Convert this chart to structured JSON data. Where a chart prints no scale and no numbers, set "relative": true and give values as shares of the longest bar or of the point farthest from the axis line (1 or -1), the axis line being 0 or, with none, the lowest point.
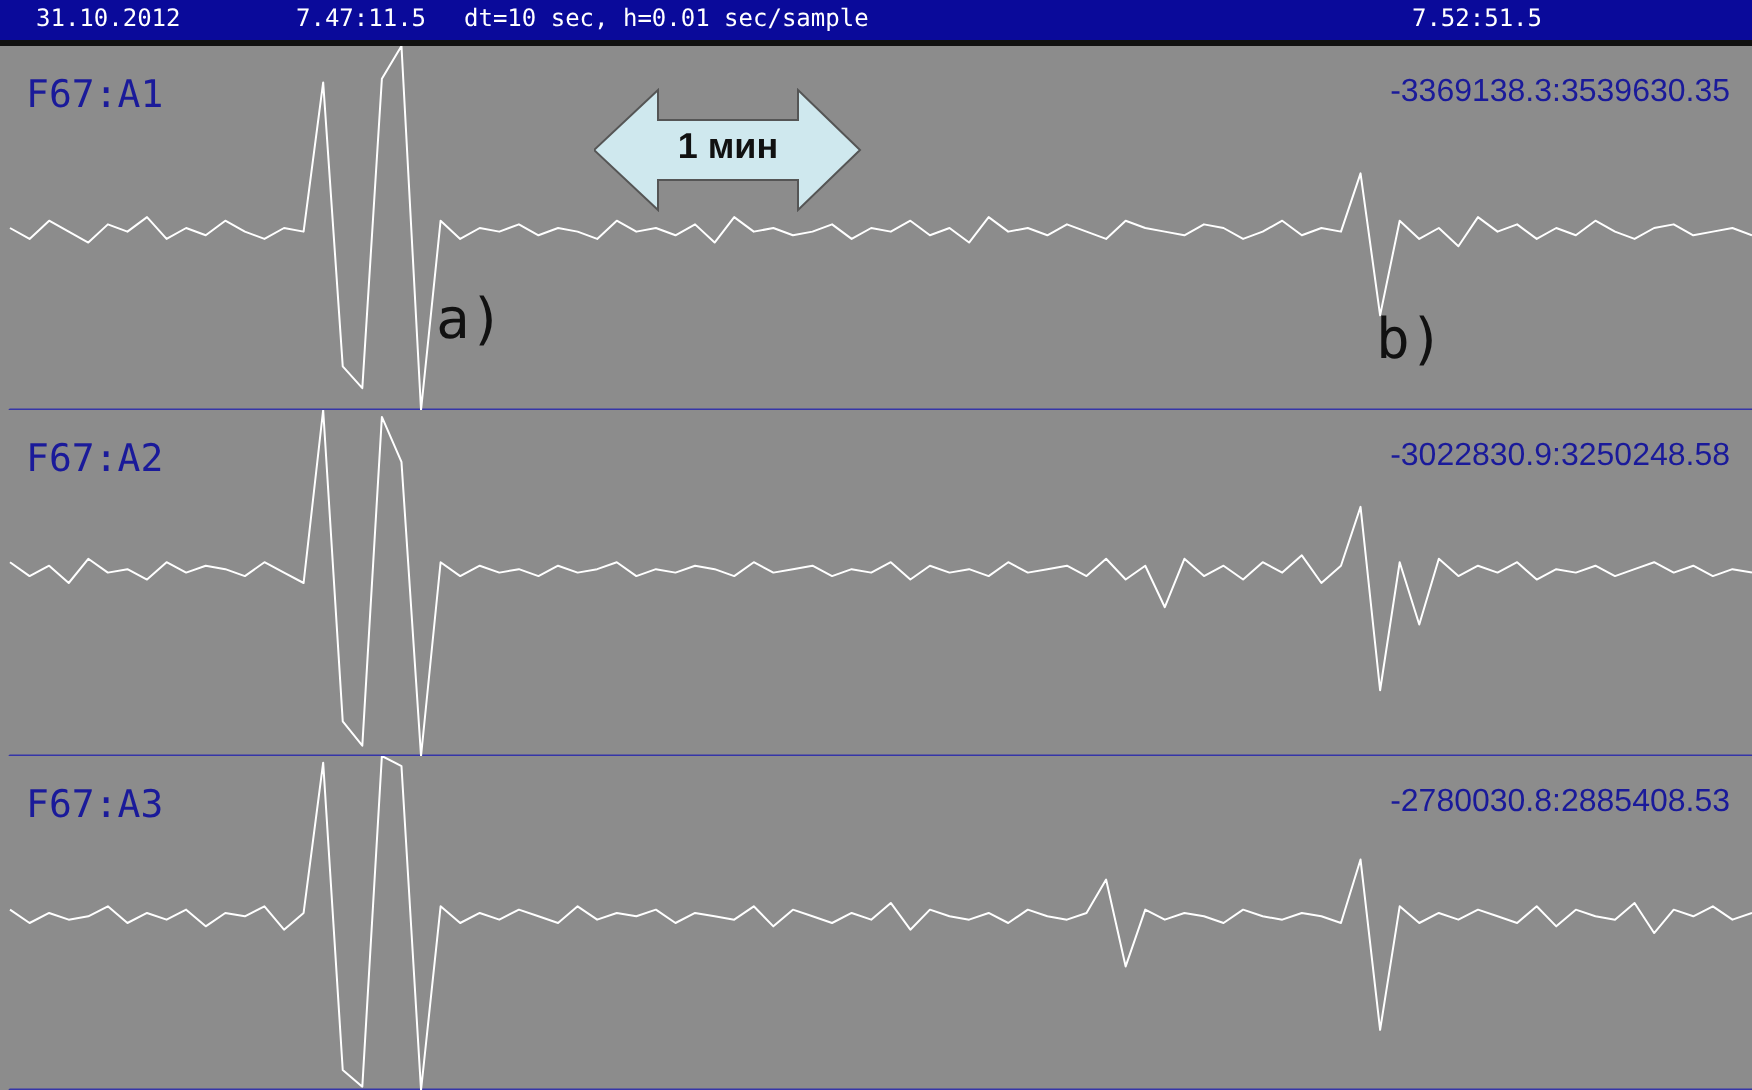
{
  "chart_data": [
    {
      "type": "line",
      "title": "F67:A1",
      "subtitle": "-3369138.3:3539630.35",
      "relative": true,
      "tick_labels": false,
      "annotations": [
        "31.10.2012",
        "7.47:11.5",
        "dt=10 sec, h=0.01 sec/sample",
        "7.52:51.5",
        "1 мин",
        "a)",
        "b)"
      ],
      "categories": [
        null,
        null,
        null,
        null,
        null,
        null,
        null,
        null,
        null,
        null,
        null,
        null,
        null,
        null,
        null,
        null,
        null,
        null,
        null,
        null,
        null,
        null,
        null,
        null,
        null,
        null,
        null,
        null,
        null,
        null,
        null,
        null,
        null,
        null,
        null,
        null,
        null,
        null,
        null,
        null,
        null,
        null,
        null,
        null,
        null,
        null,
        null,
        null,
        null,
        null,
        null,
        null,
        null,
        null,
        null,
        null,
        null,
        null,
        null,
        null,
        null,
        null,
        null,
        null,
        null,
        null,
        null,
        null,
        null,
        null,
        null,
        null,
        null,
        null,
        null,
        null,
        null,
        null,
        null,
        null,
        null,
        null,
        null,
        null,
        null,
        null,
        null,
        null,
        null,
        null
      ],
      "series": [
        {
          "color": "#ffffff",
          "values": [
            0.5,
            0.47,
            0.52,
            0.49,
            0.46,
            0.51,
            0.49,
            0.53,
            0.47,
            0.5,
            0.48,
            0.52,
            0.49,
            0.47,
            0.5,
            0.49,
            0.9,
            0.12,
            0.06,
            0.91,
            1,
            0,
            0.52,
            0.47,
            0.5,
            0.49,
            0.51,
            0.48,
            0.5,
            0.49,
            0.47,
            0.52,
            0.49,
            0.5,
            0.48,
            0.51,
            0.46,
            0.53,
            0.49,
            0.5,
            0.48,
            0.49,
            0.51,
            0.47,
            0.5,
            0.49,
            0.52,
            0.48,
            0.5,
            0.46,
            0.53,
            0.49,
            0.5,
            0.48,
            0.51,
            0.49,
            0.47,
            0.52,
            0.5,
            0.49,
            0.48,
            0.51,
            0.5,
            0.47,
            0.49,
            0.52,
            0.48,
            0.5,
            0.49,
            0.65,
            0.26,
            0.52,
            0.47,
            0.5,
            0.45,
            0.53,
            0.49,
            0.51,
            0.47,
            0.5,
            0.48,
            0.52,
            0.49,
            0.47,
            0.5,
            0.51,
            0.48,
            0.49,
            0.5,
            0.48
          ]
        }
      ]
    },
    {
      "type": "line",
      "title": "F67:A2",
      "subtitle": "-3022830.9:3250248.58",
      "relative": true,
      "tick_labels": false,
      "categories": [
        null,
        null,
        null,
        null,
        null,
        null,
        null,
        null,
        null,
        null,
        null,
        null,
        null,
        null,
        null,
        null,
        null,
        null,
        null,
        null,
        null,
        null,
        null,
        null,
        null,
        null,
        null,
        null,
        null,
        null,
        null,
        null,
        null,
        null,
        null,
        null,
        null,
        null,
        null,
        null,
        null,
        null,
        null,
        null,
        null,
        null,
        null,
        null,
        null,
        null,
        null,
        null,
        null,
        null,
        null,
        null,
        null,
        null,
        null,
        null,
        null,
        null,
        null,
        null,
        null,
        null,
        null,
        null,
        null,
        null,
        null,
        null,
        null,
        null,
        null,
        null,
        null,
        null,
        null,
        null,
        null,
        null,
        null,
        null,
        null,
        null,
        null,
        null,
        null,
        null
      ],
      "series": [
        {
          "color": "#ffffff",
          "values": [
            0.56,
            0.52,
            0.55,
            0.5,
            0.57,
            0.53,
            0.54,
            0.51,
            0.56,
            0.53,
            0.55,
            0.54,
            0.52,
            0.56,
            0.53,
            0.5,
            1.0,
            0.1,
            0.03,
            0.98,
            0.85,
            0.0,
            0.56,
            0.52,
            0.55,
            0.53,
            0.54,
            0.52,
            0.55,
            0.53,
            0.54,
            0.56,
            0.52,
            0.54,
            0.53,
            0.55,
            0.54,
            0.52,
            0.56,
            0.53,
            0.54,
            0.55,
            0.52,
            0.54,
            0.53,
            0.56,
            0.51,
            0.55,
            0.53,
            0.54,
            0.52,
            0.56,
            0.53,
            0.54,
            0.55,
            0.52,
            0.57,
            0.51,
            0.55,
            0.43,
            0.57,
            0.52,
            0.55,
            0.51,
            0.56,
            0.53,
            0.58,
            0.5,
            0.55,
            0.72,
            0.19,
            0.56,
            0.38,
            0.57,
            0.52,
            0.55,
            0.53,
            0.56,
            0.51,
            0.54,
            0.53,
            0.55,
            0.52,
            0.54,
            0.56,
            0.53,
            0.55,
            0.52,
            0.54,
            0.53
          ]
        }
      ]
    },
    {
      "type": "line",
      "title": "F67:A3",
      "subtitle": "-2780030.8:2885408.53",
      "relative": true,
      "tick_labels": false,
      "categories": [
        null,
        null,
        null,
        null,
        null,
        null,
        null,
        null,
        null,
        null,
        null,
        null,
        null,
        null,
        null,
        null,
        null,
        null,
        null,
        null,
        null,
        null,
        null,
        null,
        null,
        null,
        null,
        null,
        null,
        null,
        null,
        null,
        null,
        null,
        null,
        null,
        null,
        null,
        null,
        null,
        null,
        null,
        null,
        null,
        null,
        null,
        null,
        null,
        null,
        null,
        null,
        null,
        null,
        null,
        null,
        null,
        null,
        null,
        null,
        null,
        null,
        null,
        null,
        null,
        null,
        null,
        null,
        null,
        null,
        null,
        null,
        null,
        null,
        null,
        null,
        null,
        null,
        null,
        null,
        null,
        null,
        null,
        null,
        null,
        null,
        null,
        null,
        null,
        null,
        null
      ],
      "series": [
        {
          "color": "#ffffff",
          "values": [
            0.54,
            0.5,
            0.53,
            0.51,
            0.52,
            0.55,
            0.5,
            0.53,
            0.51,
            0.54,
            0.49,
            0.53,
            0.52,
            0.55,
            0.48,
            0.53,
            0.98,
            0.06,
            0.01,
            1.0,
            0.97,
            0.0,
            0.55,
            0.5,
            0.53,
            0.51,
            0.54,
            0.52,
            0.5,
            0.55,
            0.51,
            0.53,
            0.52,
            0.54,
            0.5,
            0.53,
            0.52,
            0.51,
            0.55,
            0.49,
            0.54,
            0.52,
            0.5,
            0.53,
            0.51,
            0.56,
            0.48,
            0.54,
            0.52,
            0.51,
            0.53,
            0.5,
            0.54,
            0.52,
            0.51,
            0.53,
            0.63,
            0.37,
            0.54,
            0.51,
            0.53,
            0.52,
            0.5,
            0.54,
            0.52,
            0.51,
            0.53,
            0.52,
            0.5,
            0.69,
            0.18,
            0.55,
            0.5,
            0.53,
            0.51,
            0.54,
            0.52,
            0.5,
            0.55,
            0.49,
            0.54,
            0.52,
            0.51,
            0.56,
            0.47,
            0.54,
            0.52,
            0.55,
            0.51,
            0.53
          ]
        }
      ]
    }
  ]
}
